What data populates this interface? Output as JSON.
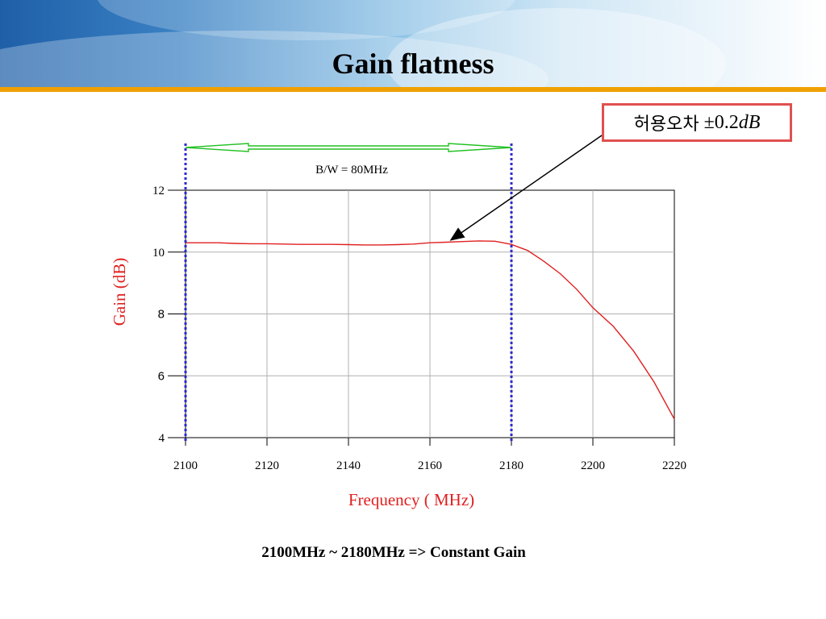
{
  "slide": {
    "title": "Gain flatness",
    "tolerance_label_kr": "허용오차",
    "tolerance_value": "±0.2",
    "tolerance_unit": "dB",
    "footer_note": "2100MHz ~ 2180MHz => Constant Gain"
  },
  "colors": {
    "curve": "#e02020",
    "axis_label": "#e02020",
    "marker_line": "#2a2ad0",
    "bw_arrow": "#22c022",
    "tolerance_border": "#e05050",
    "banner_rule": "#f0a000"
  },
  "chart_data": {
    "type": "line",
    "title": "",
    "xlabel": "Frequency ( MHz)",
    "ylabel": "Gain (dB)",
    "xlim": [
      2100,
      2220
    ],
    "ylim": [
      4,
      12
    ],
    "x_ticks": [
      "2100",
      "2120",
      "2140",
      "2160",
      "2180",
      "2200",
      "2220"
    ],
    "y_ticks": [
      "4",
      "6",
      "8",
      "10",
      "12"
    ],
    "grid": true,
    "bandwidth_label": "B/W = 80MHz",
    "bandwidth_range": [
      2100,
      2180
    ],
    "series": [
      {
        "x": [
          2100,
          2104,
          2108,
          2112,
          2116,
          2120,
          2124,
          2128,
          2132,
          2136,
          2140,
          2144,
          2148,
          2152,
          2156,
          2160,
          2164,
          2168,
          2172,
          2176,
          2180,
          2184,
          2188,
          2192,
          2196,
          2200,
          2205,
          2210,
          2215,
          2220
        ],
        "y": [
          10.3,
          10.3,
          10.3,
          10.28,
          10.27,
          10.27,
          10.26,
          10.25,
          10.25,
          10.25,
          10.24,
          10.23,
          10.23,
          10.24,
          10.26,
          10.3,
          10.32,
          10.34,
          10.36,
          10.35,
          10.25,
          10.05,
          9.7,
          9.3,
          8.8,
          8.2,
          7.6,
          6.8,
          5.8,
          4.6
        ]
      }
    ]
  }
}
